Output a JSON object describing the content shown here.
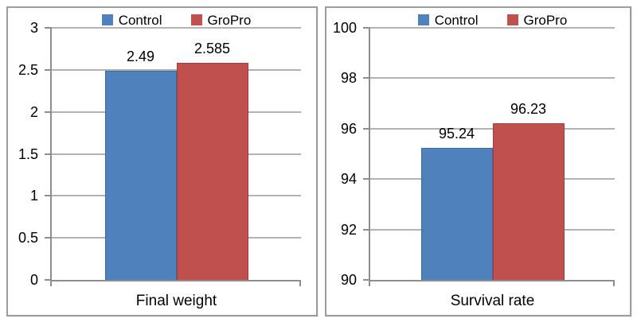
{
  "figure": {
    "background": "#ffffff",
    "panel_border_color": "#9c9c9c",
    "gridline_color": "#b2b2b2",
    "axis_color": "#8e8e8e",
    "text_color": "#000000"
  },
  "legend": {
    "items": [
      {
        "label": "Control",
        "color": "#4F81BD"
      },
      {
        "label": "GroPro",
        "color": "#C0504D"
      }
    ],
    "position": "top"
  },
  "chart_data": [
    {
      "type": "bar",
      "title": "",
      "xlabel": "Final weight",
      "ylabel": "",
      "categories": [
        "Final weight"
      ],
      "series": [
        {
          "name": "Control",
          "values": [
            2.49
          ],
          "color": "#4F81BD",
          "border_color": "#3d6a9e",
          "data_label": "2.49"
        },
        {
          "name": "GroPro",
          "values": [
            2.585
          ],
          "color": "#C0504D",
          "border_color": "#a03f3d",
          "data_label": "2.585"
        }
      ],
      "ylim": [
        0,
        3
      ],
      "yticks": [
        0,
        0.5,
        1,
        1.5,
        2,
        2.5,
        3
      ],
      "ytick_labels": [
        "0",
        "0.5",
        "1",
        "1.5",
        "2",
        "2.5",
        "3"
      ],
      "grid": true,
      "legend_position": "top"
    },
    {
      "type": "bar",
      "title": "",
      "xlabel": "Survival rate",
      "ylabel": "",
      "categories": [
        "Survival rate"
      ],
      "series": [
        {
          "name": "Control",
          "values": [
            95.24
          ],
          "color": "#4F81BD",
          "border_color": "#3d6a9e",
          "data_label": "95.24"
        },
        {
          "name": "GroPro",
          "values": [
            96.23
          ],
          "color": "#C0504D",
          "border_color": "#a03f3d",
          "data_label": "96.23"
        }
      ],
      "ylim": [
        90,
        100
      ],
      "yticks": [
        90,
        92,
        94,
        96,
        98,
        100
      ],
      "ytick_labels": [
        "90",
        "92",
        "94",
        "96",
        "98",
        "100"
      ],
      "grid": true,
      "legend_position": "top"
    }
  ]
}
